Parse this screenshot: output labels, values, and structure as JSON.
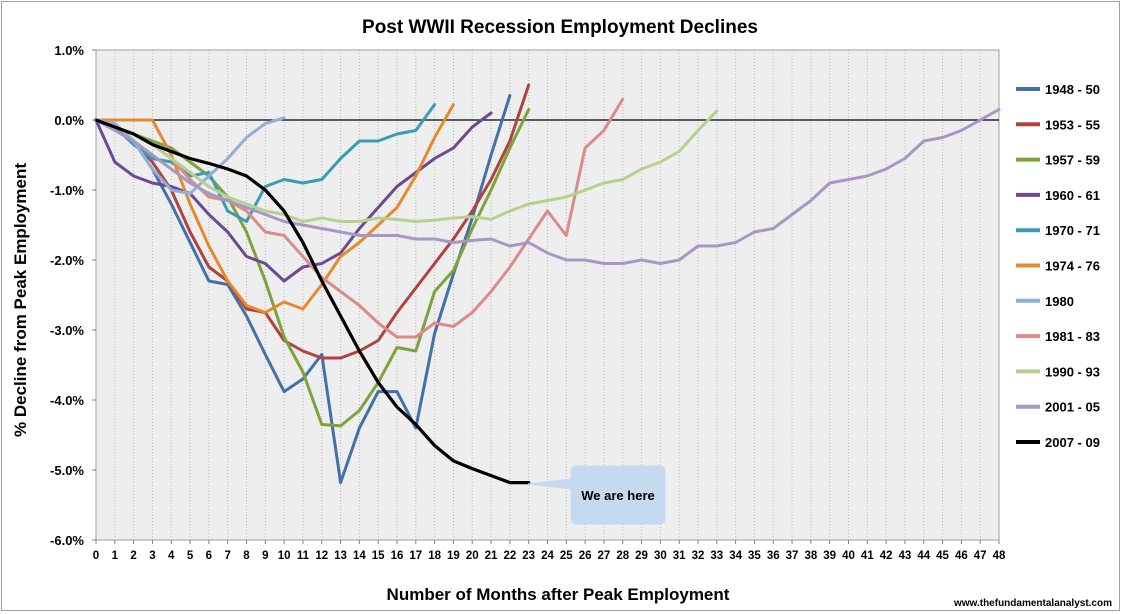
{
  "chart_data": {
    "type": "line",
    "title": "Post WWII Recession Employment Declines",
    "xlabel": "Number of Months  after Peak Employment",
    "ylabel": "% Decline from Peak Employment",
    "xlim": [
      0,
      48
    ],
    "ylim": [
      -6.0,
      1.0
    ],
    "yticks": [
      "1.0%",
      "0.0%",
      "-1.0%",
      "-2.0%",
      "-3.0%",
      "-4.0%",
      "-5.0%",
      "-6.0%"
    ],
    "ytick_values": [
      1,
      0,
      -1,
      -2,
      -3,
      -4,
      -5,
      -6
    ],
    "xticks": [
      "0",
      "1",
      "2",
      "3",
      "4",
      "5",
      "6",
      "7",
      "8",
      "9",
      "10",
      "11",
      "12",
      "13",
      "14",
      "15",
      "16",
      "17",
      "18",
      "19",
      "20",
      "21",
      "22",
      "23",
      "24",
      "25",
      "26",
      "27",
      "28",
      "29",
      "30",
      "31",
      "32",
      "33",
      "34",
      "35",
      "36",
      "37",
      "38",
      "39",
      "40",
      "41",
      "42",
      "43",
      "44",
      "45",
      "46",
      "47",
      "48"
    ],
    "grid": "vertical",
    "legend": "right",
    "annotation": "We are here",
    "source": "www.thefundamentalanalyst.com",
    "series": [
      {
        "name": "1948 - 50",
        "color": "#4470a8",
        "values": [
          0,
          -0.1,
          -0.3,
          -0.7,
          -1.2,
          -1.75,
          -2.3,
          -2.35,
          -2.8,
          -3.35,
          -3.88,
          -3.7,
          -3.35,
          -5.18,
          -4.4,
          -3.88,
          -3.88,
          -4.4,
          -3.05,
          -2.2,
          -1.4,
          -0.5,
          0.35
        ]
      },
      {
        "name": "1953 - 55",
        "color": "#b04240",
        "values": [
          0,
          -0.1,
          -0.3,
          -0.6,
          -1.0,
          -1.6,
          -2.1,
          -2.3,
          -2.7,
          -2.75,
          -3.15,
          -3.3,
          -3.4,
          -3.4,
          -3.3,
          -3.15,
          -2.75,
          -2.4,
          -2.05,
          -1.7,
          -1.3,
          -0.85,
          -0.3,
          0.5
        ]
      },
      {
        "name": "1957 - 59",
        "color": "#7ea23c",
        "values": [
          0,
          -0.1,
          -0.2,
          -0.3,
          -0.4,
          -0.6,
          -0.8,
          -1.1,
          -1.6,
          -2.3,
          -3.1,
          -3.6,
          -4.35,
          -4.37,
          -4.15,
          -3.75,
          -3.25,
          -3.3,
          -2.45,
          -2.15,
          -1.55,
          -1.0,
          -0.4,
          0.15
        ]
      },
      {
        "name": "1960 - 61",
        "color": "#6a4a92",
        "values": [
          0,
          -0.6,
          -0.8,
          -0.9,
          -0.95,
          -1.05,
          -1.35,
          -1.6,
          -1.95,
          -2.05,
          -2.3,
          -2.1,
          -2.05,
          -1.9,
          -1.55,
          -1.25,
          -0.95,
          -0.75,
          -0.55,
          -0.4,
          -0.1,
          0.1
        ]
      },
      {
        "name": "1970 - 71",
        "color": "#3a9cb0",
        "values": [
          0,
          -0.1,
          -0.35,
          -0.55,
          -0.6,
          -0.8,
          -0.75,
          -1.3,
          -1.45,
          -0.95,
          -0.85,
          -0.9,
          -0.85,
          -0.55,
          -0.3,
          -0.3,
          -0.2,
          -0.15,
          0.22
        ]
      },
      {
        "name": "1974 - 76",
        "color": "#e58a2c",
        "values": [
          0,
          0,
          0,
          0,
          -0.5,
          -1.2,
          -1.8,
          -2.3,
          -2.65,
          -2.75,
          -2.6,
          -2.7,
          -2.35,
          -1.95,
          -1.75,
          -1.5,
          -1.25,
          -0.8,
          -0.25,
          0.22
        ]
      },
      {
        "name": "1980",
        "color": "#93aed6",
        "values": [
          0,
          -0.05,
          -0.3,
          -0.7,
          -1.0,
          -1.05,
          -0.8,
          -0.55,
          -0.25,
          -0.05,
          0.03
        ]
      },
      {
        "name": "1981 - 83",
        "color": "#d98c8a",
        "values": [
          0,
          -0.1,
          -0.2,
          -0.35,
          -0.55,
          -0.85,
          -1.1,
          -1.15,
          -1.3,
          -1.6,
          -1.65,
          -1.95,
          -2.25,
          -2.45,
          -2.65,
          -2.9,
          -3.1,
          -3.1,
          -2.9,
          -2.95,
          -2.75,
          -2.45,
          -2.1,
          -1.7,
          -1.3,
          -1.65,
          -0.4,
          -0.15,
          0.3
        ]
      },
      {
        "name": "1990 - 93",
        "color": "#b5d18c",
        "values": [
          0,
          -0.1,
          -0.2,
          -0.35,
          -0.55,
          -0.75,
          -0.95,
          -1.1,
          -1.2,
          -1.3,
          -1.35,
          -1.45,
          -1.4,
          -1.45,
          -1.45,
          -1.4,
          -1.42,
          -1.45,
          -1.43,
          -1.4,
          -1.38,
          -1.42,
          -1.3,
          -1.2,
          -1.15,
          -1.1,
          -1.0,
          -0.9,
          -0.85,
          -0.7,
          -0.6,
          -0.45,
          -0.15,
          0.13
        ]
      },
      {
        "name": "2001 - 05",
        "color": "#a896c4",
        "values": [
          0,
          -0.15,
          -0.3,
          -0.5,
          -0.7,
          -0.9,
          -1.05,
          -1.15,
          -1.25,
          -1.35,
          -1.45,
          -1.5,
          -1.55,
          -1.6,
          -1.65,
          -1.65,
          -1.65,
          -1.7,
          -1.7,
          -1.75,
          -1.72,
          -1.7,
          -1.8,
          -1.75,
          -1.9,
          -2.0,
          -2.0,
          -2.05,
          -2.05,
          -2.0,
          -2.05,
          -2.0,
          -1.8,
          -1.8,
          -1.75,
          -1.6,
          -1.55,
          -1.35,
          -1.15,
          -0.9,
          -0.85,
          -0.8,
          -0.7,
          -0.55,
          -0.3,
          -0.25,
          -0.15,
          -0.0,
          0.15
        ]
      },
      {
        "name": "2007 - 09",
        "color": "#000000",
        "values": [
          0,
          -0.1,
          -0.2,
          -0.35,
          -0.45,
          -0.55,
          -0.62,
          -0.7,
          -0.8,
          -1.0,
          -1.3,
          -1.75,
          -2.3,
          -2.8,
          -3.3,
          -3.75,
          -4.1,
          -4.35,
          -4.65,
          -4.87,
          -4.98,
          -5.08,
          -5.18,
          -5.18
        ]
      }
    ]
  }
}
